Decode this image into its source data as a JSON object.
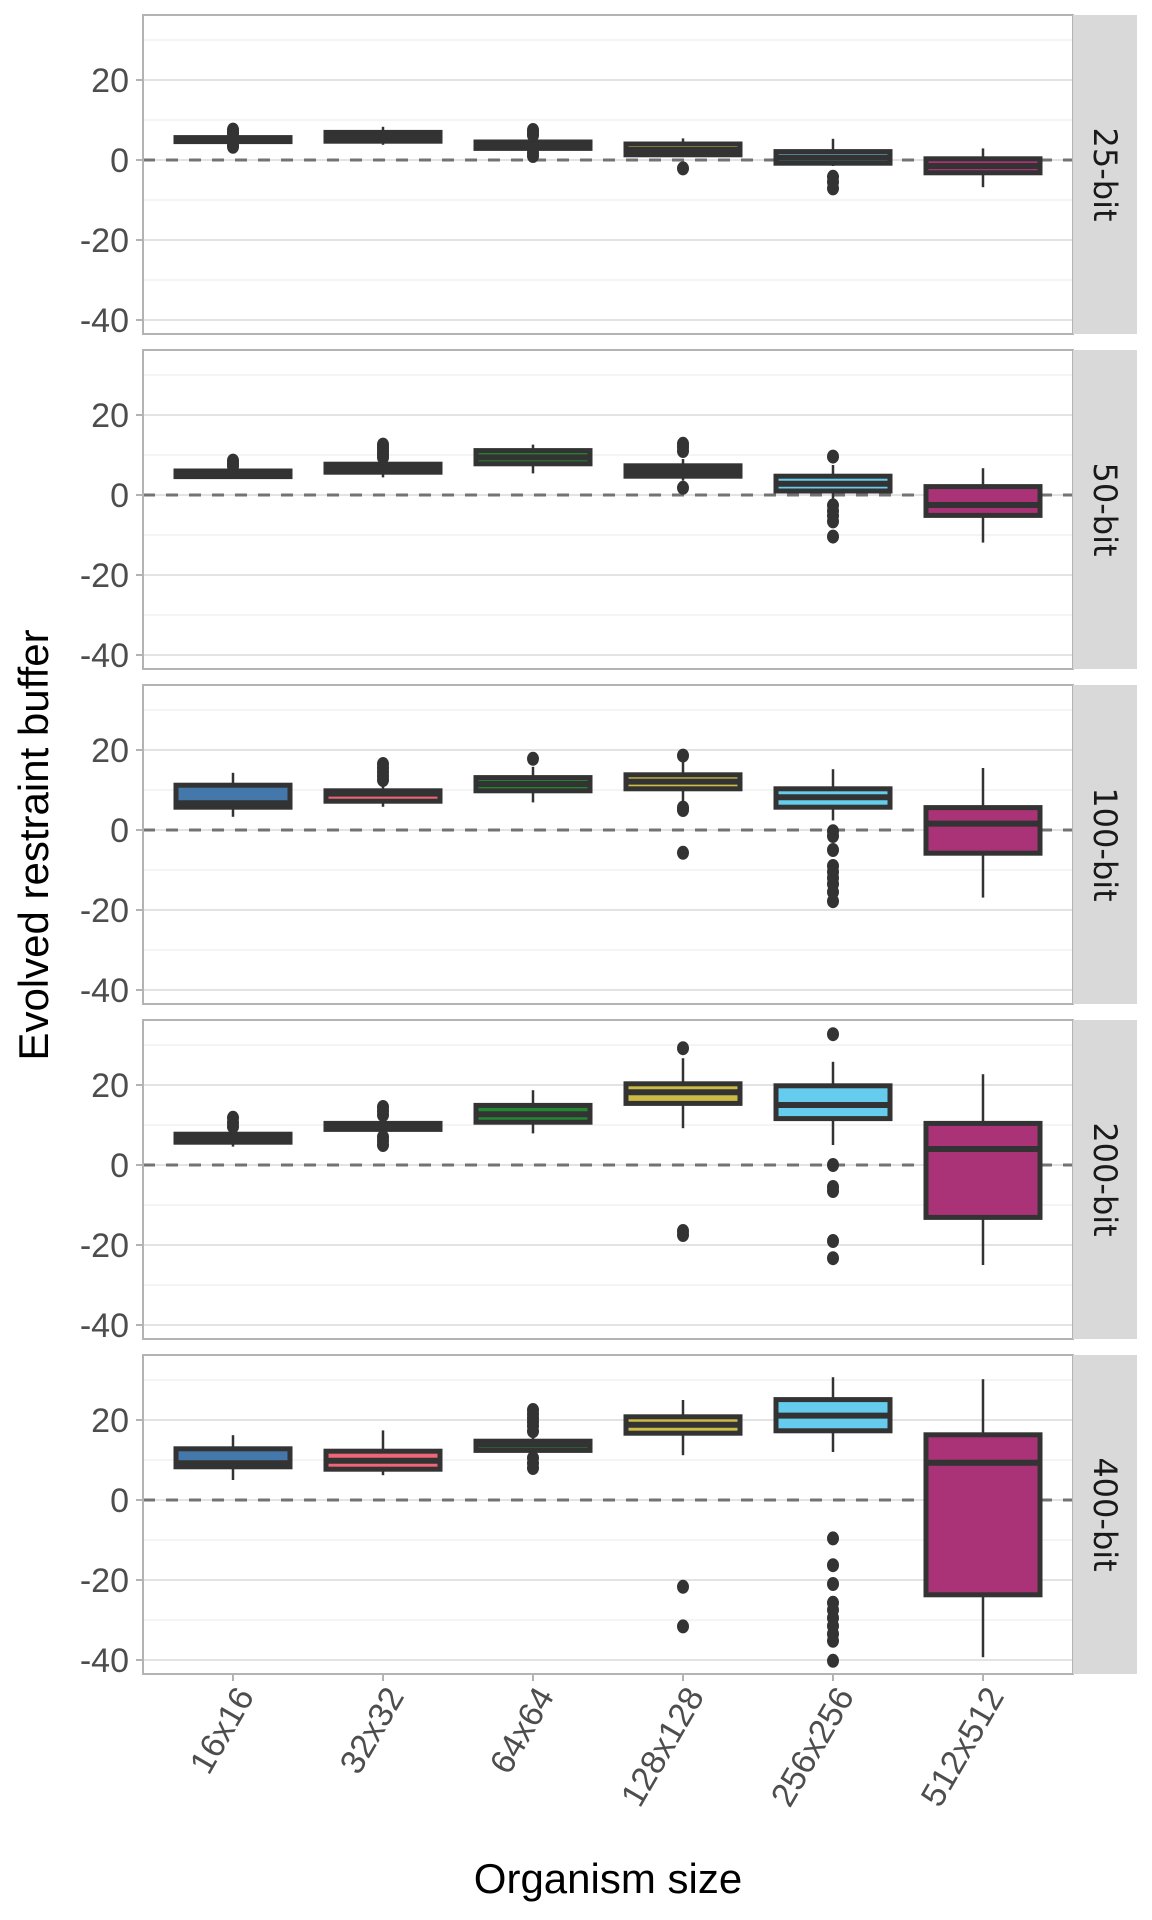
{
  "chart_data": {
    "type": "boxplot",
    "title": "",
    "xlabel": "Organism size",
    "ylabel": "Evolved restraint buffer",
    "categories": [
      "16x16",
      "32x32",
      "64x64",
      "128x128",
      "256x256",
      "512x512"
    ],
    "ylim": [
      -43.5,
      36.25
    ],
    "yticks": [
      20,
      0,
      -20,
      -40
    ],
    "ytick_labels": [
      "20",
      "0",
      "-20",
      "-40"
    ],
    "grid": true,
    "reference_line": {
      "y": 0,
      "style": "dashed",
      "color": "#737373"
    },
    "colors": {
      "16x16": "#4477AA",
      "32x32": "#EE6677",
      "64x64": "#228833",
      "128x128": "#CCBB44",
      "256x256": "#66CCEE",
      "512x512": "#AA3377"
    },
    "outline_color": "#333333",
    "facets": [
      {
        "label": "25-bit",
        "boxes": [
          {
            "category": "16x16",
            "whisker_low": 4.4,
            "q1": 4.6,
            "median": 5.0,
            "q3": 5.6,
            "whisker_high": 6.0,
            "outliers": [
              7.6,
              7.0,
              6.6,
              3.8,
              3.3
            ]
          },
          {
            "category": "32x32",
            "whisker_low": 3.8,
            "q1": 4.7,
            "median": 5.8,
            "q3": 6.9,
            "whisker_high": 8.3,
            "outliers": []
          },
          {
            "category": "64x64",
            "whisker_low": 2.6,
            "q1": 2.9,
            "median": 3.6,
            "q3": 4.5,
            "whisker_high": 4.9,
            "outliers": [
              7.5,
              6.8,
              6.2,
              1.8,
              1.0
            ]
          },
          {
            "category": "128x128",
            "whisker_low": 0.8,
            "q1": 1.3,
            "median": 2.5,
            "q3": 4.0,
            "whisker_high": 5.4,
            "outliers": [
              -2.1
            ]
          },
          {
            "category": "256x256",
            "whisker_low": -1.5,
            "q1": -0.8,
            "median": 0.6,
            "q3": 2.1,
            "whisker_high": 5.3,
            "outliers": [
              -4.2,
              -5.5,
              -7.1
            ]
          },
          {
            "category": "512x512",
            "whisker_low": -6.8,
            "q1": -3.2,
            "median": -1.5,
            "q3": 0.3,
            "whisker_high": 2.9,
            "outliers": []
          }
        ]
      },
      {
        "label": "50-bit",
        "boxes": [
          {
            "category": "16x16",
            "whisker_low": 4.4,
            "q1": 4.6,
            "median": 5.2,
            "q3": 6.0,
            "whisker_high": 6.4,
            "outliers": [
              8.6,
              7.8,
              7.2
            ]
          },
          {
            "category": "32x32",
            "whisker_low": 4.4,
            "q1": 5.7,
            "median": 6.7,
            "q3": 7.7,
            "whisker_high": 8.6,
            "outliers": [
              12.6,
              11.8,
              11.0,
              10.2,
              9.4
            ]
          },
          {
            "category": "64x64",
            "whisker_low": 5.4,
            "q1": 7.8,
            "median": 9.4,
            "q3": 11.1,
            "whisker_high": 12.6,
            "outliers": []
          },
          {
            "category": "128x128",
            "whisker_low": 3.6,
            "q1": 4.7,
            "median": 6.0,
            "q3": 7.3,
            "whisker_high": 9.0,
            "outliers": [
              12.8,
              12.0,
              11.0,
              1.8
            ]
          },
          {
            "category": "256x256",
            "whisker_low": -1.5,
            "q1": 1.0,
            "median": 2.8,
            "q3": 4.7,
            "whisker_high": 7.5,
            "outliers": [
              9.6,
              -2.6,
              -4.0,
              -5.2,
              -6.6,
              -10.4
            ]
          },
          {
            "category": "512x512",
            "whisker_low": -11.9,
            "q1": -5.1,
            "median": -2.5,
            "q3": 2.1,
            "whisker_high": 6.7,
            "outliers": []
          }
        ]
      },
      {
        "label": "100-bit",
        "boxes": [
          {
            "category": "16x16",
            "whisker_low": 3.3,
            "q1": 5.7,
            "median": 6.7,
            "q3": 11.2,
            "whisker_high": 14.3,
            "outliers": []
          },
          {
            "category": "32x32",
            "whisker_low": 5.8,
            "q1": 7.2,
            "median": 9.1,
            "q3": 9.8,
            "whisker_high": 11.5,
            "outliers": [
              16.5,
              15.5,
              14.5,
              13.5,
              12.5
            ]
          },
          {
            "category": "64x64",
            "whisker_low": 6.9,
            "q1": 9.8,
            "median": 11.5,
            "q3": 13.1,
            "whisker_high": 15.8,
            "outliers": [
              17.8
            ]
          },
          {
            "category": "128x128",
            "whisker_low": 7.1,
            "q1": 10.3,
            "median": 12.1,
            "q3": 13.8,
            "whisker_high": 17.1,
            "outliers": [
              18.6,
              5.6,
              5.0,
              -5.7
            ]
          },
          {
            "category": "256x256",
            "whisker_low": 2.4,
            "q1": 5.7,
            "median": 8.2,
            "q3": 10.3,
            "whisker_high": 15.2,
            "outliers": [
              -0.3,
              -1.5,
              -5.0,
              -9.0,
              -10.5,
              -12.0,
              -13.5,
              -15.5,
              -17.8
            ]
          },
          {
            "category": "512x512",
            "whisker_low": -16.9,
            "q1": -5.8,
            "median": 1.6,
            "q3": 5.6,
            "whisker_high": 15.5,
            "outliers": []
          }
        ]
      },
      {
        "label": "200-bit",
        "boxes": [
          {
            "category": "16x16",
            "whisker_low": 4.6,
            "q1": 5.7,
            "median": 6.5,
            "q3": 7.7,
            "whisker_high": 8.6,
            "outliers": [
              11.8,
              10.6,
              9.6
            ]
          },
          {
            "category": "32x32",
            "whisker_low": 7.6,
            "q1": 8.9,
            "median": 9.7,
            "q3": 10.4,
            "whisker_high": 11.5,
            "outliers": [
              14.5,
              13.5,
              12.5,
              7.0,
              6.0,
              5.0
            ]
          },
          {
            "category": "64x64",
            "whisker_low": 7.9,
            "q1": 10.7,
            "median": 12.7,
            "q3": 14.9,
            "whisker_high": 18.7,
            "outliers": []
          },
          {
            "category": "128x128",
            "whisker_low": 9.2,
            "q1": 15.4,
            "median": 18.2,
            "q3": 20.3,
            "whisker_high": 26.7,
            "outliers": [
              29.2,
              -16.5,
              -17.5
            ]
          },
          {
            "category": "256x256",
            "whisker_low": 5.0,
            "q1": 11.6,
            "median": 15.0,
            "q3": 19.8,
            "whisker_high": 25.8,
            "outliers": [
              32.7,
              0.0,
              -5.5,
              -6.5,
              -19.0,
              -23.3
            ]
          },
          {
            "category": "512x512",
            "whisker_low": -25.0,
            "q1": -13.1,
            "median": 4.0,
            "q3": 10.4,
            "whisker_high": 22.7,
            "outliers": []
          }
        ]
      },
      {
        "label": "400-bit",
        "boxes": [
          {
            "category": "16x16",
            "whisker_low": 5.0,
            "q1": 8.3,
            "median": 9.2,
            "q3": 12.8,
            "whisker_high": 16.2,
            "outliers": []
          },
          {
            "category": "32x32",
            "whisker_low": 6.2,
            "q1": 7.7,
            "median": 9.8,
            "q3": 12.2,
            "whisker_high": 17.4,
            "outliers": []
          },
          {
            "category": "64x64",
            "whisker_low": 11.8,
            "q1": 12.4,
            "median": 13.9,
            "q3": 14.7,
            "whisker_high": 16.0,
            "outliers": [
              22.5,
              21.5,
              20.5,
              19.5,
              18.5,
              17.2,
              10.5,
              9.2,
              8.0
            ]
          },
          {
            "category": "128x128",
            "whisker_low": 11.2,
            "q1": 16.7,
            "median": 18.8,
            "q3": 20.8,
            "whisker_high": 25.0,
            "outliers": [
              -21.7,
              -31.6
            ]
          },
          {
            "category": "256x256",
            "whisker_low": 12.0,
            "q1": 17.3,
            "median": 21.1,
            "q3": 25.1,
            "whisker_high": 30.7,
            "outliers": [
              -9.6,
              -16.3,
              -21.0,
              -25.7,
              -27.5,
              -29.5,
              -31.5,
              -33.5,
              -35.2,
              -40.2
            ]
          },
          {
            "category": "512x512",
            "whisker_low": -39.3,
            "q1": -23.7,
            "median": 9.3,
            "q3": 16.3,
            "whisker_high": 30.2,
            "outliers": []
          }
        ]
      }
    ]
  }
}
